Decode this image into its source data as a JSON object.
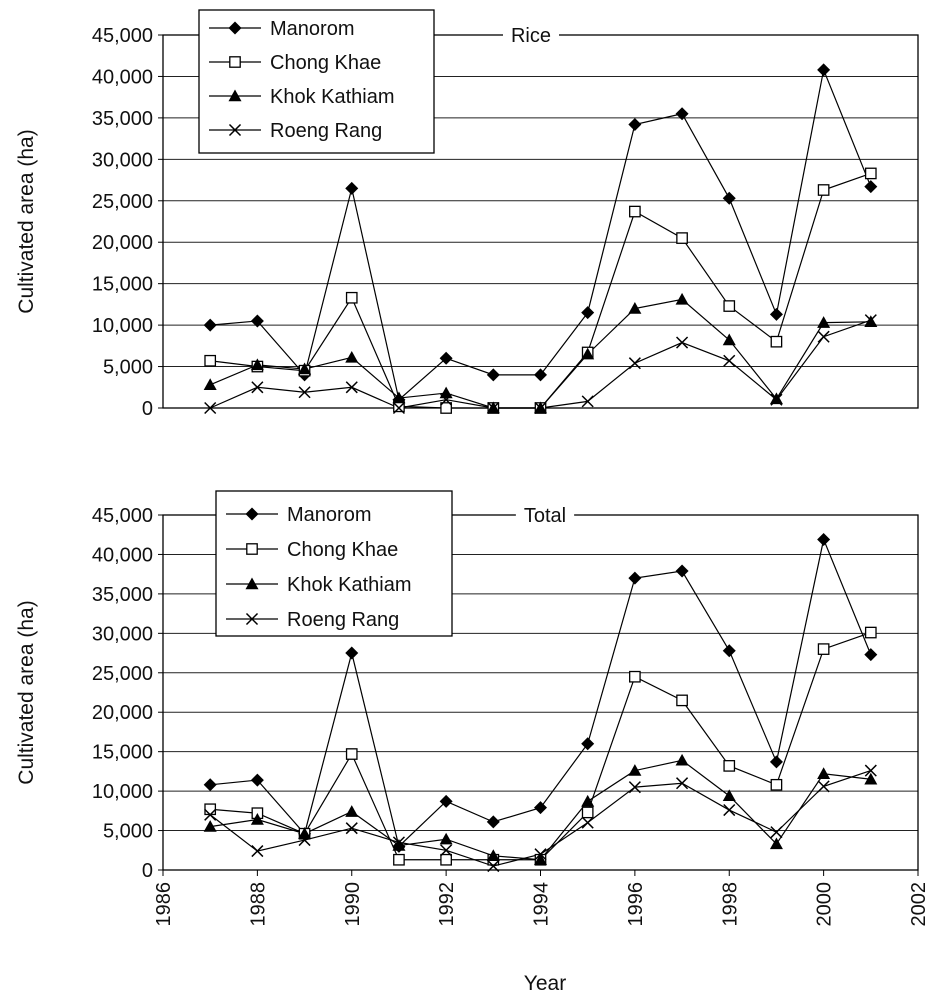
{
  "figure": {
    "xlabel": "Year"
  },
  "chart_data": [
    {
      "type": "line",
      "title": "Rice",
      "ylabel": "Cultivated area (ha)",
      "ylim": [
        0,
        45000
      ],
      "yticks": [
        0,
        5000,
        10000,
        15000,
        20000,
        25000,
        30000,
        35000,
        40000,
        45000
      ],
      "ytick_labels": [
        "0",
        "5,000",
        "10,000",
        "15,000",
        "20,000",
        "25,000",
        "30,000",
        "35,000",
        "40,000",
        "45,000"
      ],
      "xlim": [
        1986,
        2002
      ],
      "grid": "horizontal",
      "legend_position": "top-left",
      "x": [
        1987,
        1988,
        1989,
        1990,
        1991,
        1992,
        1993,
        1994,
        1995,
        1996,
        1997,
        1998,
        1999,
        2000,
        2001
      ],
      "series": [
        {
          "name": "Manorom",
          "marker": "diamond",
          "values": [
            10000,
            10500,
            4000,
            26500,
            1000,
            6000,
            4000,
            4000,
            11500,
            34200,
            35500,
            25300,
            11300,
            40800,
            26700
          ]
        },
        {
          "name": "Chong Khae",
          "marker": "square",
          "values": [
            5700,
            5000,
            4500,
            13300,
            200,
            0,
            0,
            0,
            6700,
            23700,
            20500,
            12300,
            8000,
            26300,
            28300
          ]
        },
        {
          "name": "Khok Kathiam",
          "marker": "triangle",
          "values": [
            2800,
            5200,
            4700,
            6100,
            1200,
            1800,
            0,
            0,
            6500,
            12000,
            13100,
            8200,
            1100,
            10300,
            10400
          ]
        },
        {
          "name": "Roeng Rang",
          "marker": "x",
          "values": [
            0,
            2500,
            1900,
            2500,
            0,
            1000,
            0,
            0,
            800,
            5400,
            7900,
            5700,
            1000,
            8600,
            10600
          ]
        }
      ]
    },
    {
      "type": "line",
      "title": "Total",
      "ylabel": "Cultivated area (ha)",
      "ylim": [
        0,
        45000
      ],
      "yticks": [
        0,
        5000,
        10000,
        15000,
        20000,
        25000,
        30000,
        35000,
        40000,
        45000
      ],
      "ytick_labels": [
        "0",
        "5,000",
        "10,000",
        "15,000",
        "20,000",
        "25,000",
        "30,000",
        "35,000",
        "40,000",
        "45,000"
      ],
      "xlim": [
        1986,
        2002
      ],
      "xticks": [
        1986,
        1988,
        1990,
        1992,
        1994,
        1996,
        1998,
        2000,
        2002
      ],
      "xtick_labels": [
        "1986",
        "1988",
        "1990",
        "1992",
        "1994",
        "1996",
        "1998",
        "2000",
        "2002"
      ],
      "grid": "horizontal",
      "legend_position": "top-left",
      "x": [
        1987,
        1988,
        1989,
        1990,
        1991,
        1992,
        1993,
        1994,
        1995,
        1996,
        1997,
        1998,
        1999,
        2000,
        2001
      ],
      "series": [
        {
          "name": "Manorom",
          "marker": "diamond",
          "values": [
            10800,
            11400,
            4600,
            27500,
            3000,
            8700,
            6100,
            7900,
            16000,
            37000,
            37900,
            27800,
            13700,
            41900,
            27300
          ]
        },
        {
          "name": "Chong Khae",
          "marker": "square",
          "values": [
            7700,
            7200,
            4600,
            14700,
            1300,
            1300,
            1300,
            1300,
            7300,
            24500,
            21500,
            13200,
            10800,
            28000,
            30100
          ]
        },
        {
          "name": "Khok Kathiam",
          "marker": "triangle",
          "values": [
            5500,
            6400,
            4600,
            7400,
            3100,
            3900,
            1800,
            1300,
            8700,
            12600,
            13900,
            9400,
            3300,
            12200,
            11500
          ]
        },
        {
          "name": "Roeng Rang",
          "marker": "x",
          "values": [
            7000,
            2400,
            3800,
            5300,
            3500,
            2500,
            500,
            2000,
            6000,
            10500,
            11000,
            7600,
            4800,
            10600,
            12600
          ]
        }
      ]
    }
  ]
}
